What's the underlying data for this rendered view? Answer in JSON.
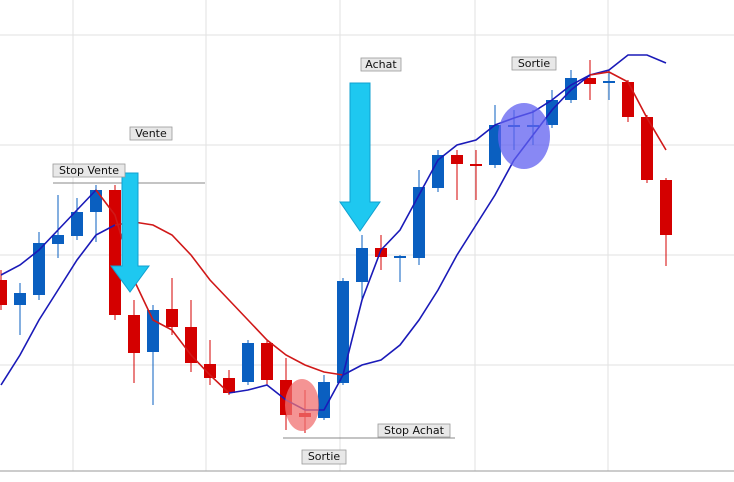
{
  "chart_data": {
    "type": "candlestick",
    "ylim": [
      0,
      482
    ],
    "up_color": "#0a5fc0",
    "down_color": "#d40000",
    "open": [
      202,
      177,
      187,
      238,
      246,
      270,
      292,
      167,
      130,
      173,
      155,
      118,
      104,
      100,
      139,
      102,
      69,
      64,
      99,
      200,
      234,
      224,
      224,
      294,
      327,
      318,
      317,
      355,
      355,
      357,
      382,
      404,
      399,
      400,
      365,
      302
    ],
    "high": [
      212,
      199,
      250,
      287,
      284,
      297,
      297,
      182,
      177,
      204,
      182,
      142,
      112,
      142,
      142,
      124,
      92,
      107,
      204,
      247,
      247,
      227,
      312,
      332,
      332,
      332,
      377,
      372,
      372,
      392,
      412,
      422,
      412,
      402,
      367,
      304
    ],
    "low": [
      172,
      147,
      182,
      224,
      242,
      240,
      162,
      99,
      77,
      147,
      110,
      97,
      87,
      97,
      97,
      52,
      49,
      62,
      97,
      182,
      212,
      200,
      217,
      290,
      282,
      282,
      314,
      332,
      337,
      354,
      379,
      382,
      382,
      360,
      299,
      216
    ],
    "close": [
      177,
      189,
      239,
      247,
      270,
      292,
      167,
      129,
      172,
      155,
      119,
      104,
      89,
      139,
      102,
      67,
      65,
      100,
      201,
      234,
      225,
      226,
      295,
      327,
      318,
      316,
      357,
      357,
      357,
      382,
      404,
      398,
      401,
      365,
      302,
      247
    ],
    "series": [
      {
        "color": "#1a1ab8",
        "values": [
          97,
          127,
          162,
          192,
          222,
          247,
          257,
          null,
          null,
          null,
          null,
          null,
          null,
          null,
          null,
          null,
          null,
          null,
          null,
          null,
          null,
          null,
          null,
          null,
          null,
          null,
          null,
          null,
          null,
          null,
          null,
          null,
          null,
          null,
          null,
          null
        ]
      },
      {
        "color": "#d01818",
        "values": [
          null,
          null,
          null,
          null,
          null,
          null,
          257,
          260,
          257,
          247,
          227,
          202,
          182,
          162,
          142,
          127,
          117,
          110,
          107,
          null,
          null,
          null,
          null,
          null,
          null,
          null,
          null,
          null,
          null,
          null,
          null,
          null,
          null,
          null,
          null,
          null
        ]
      },
      {
        "color": "#1a1ab8",
        "values": [
          null,
          null,
          null,
          null,
          null,
          null,
          null,
          null,
          null,
          null,
          null,
          null,
          null,
          null,
          null,
          null,
          null,
          null,
          107,
          117,
          122,
          137,
          162,
          192,
          227,
          257,
          287,
          322,
          347,
          372,
          392,
          407,
          412,
          427,
          427,
          419
        ]
      },
      {
        "color": "#1a1ab8",
        "values": [
          207,
          217,
          232,
          252,
          272,
          292,
          null,
          null,
          null,
          null,
          null,
          null,
          null,
          null,
          null,
          null,
          null,
          null,
          null,
          null,
          null,
          null,
          null,
          null,
          null,
          null,
          null,
          null,
          null,
          null,
          null,
          null,
          null,
          null,
          null,
          null
        ]
      },
      {
        "color": "#d01818",
        "values": [
          null,
          null,
          null,
          null,
          null,
          292,
          267,
          202,
          162,
          152,
          127,
          107,
          89,
          null,
          null,
          null,
          null,
          null,
          null,
          null,
          null,
          null,
          null,
          null,
          null,
          null,
          null,
          null,
          null,
          null,
          null,
          null,
          null,
          null,
          null,
          null
        ]
      },
      {
        "color": "#1a1ab8",
        "values": [
          null,
          null,
          null,
          null,
          null,
          null,
          null,
          null,
          null,
          null,
          null,
          null,
          89,
          92,
          97,
          82,
          72,
          72,
          107,
          182,
          232,
          252,
          287,
          322,
          337,
          342,
          357,
          364,
          370,
          382,
          397,
          407,
          null,
          null,
          null,
          null
        ]
      },
      {
        "color": "#d01818",
        "values": [
          null,
          null,
          null,
          null,
          null,
          null,
          null,
          null,
          null,
          null,
          null,
          null,
          null,
          null,
          null,
          null,
          null,
          null,
          null,
          null,
          null,
          null,
          null,
          null,
          null,
          null,
          null,
          null,
          null,
          null,
          null,
          407,
          410,
          400,
          364,
          332
        ]
      }
    ],
    "annotations": [
      "Vente",
      "Stop Vente",
      "Achat",
      "Sortie",
      "Stop Achat",
      "Sortie"
    ]
  }
}
